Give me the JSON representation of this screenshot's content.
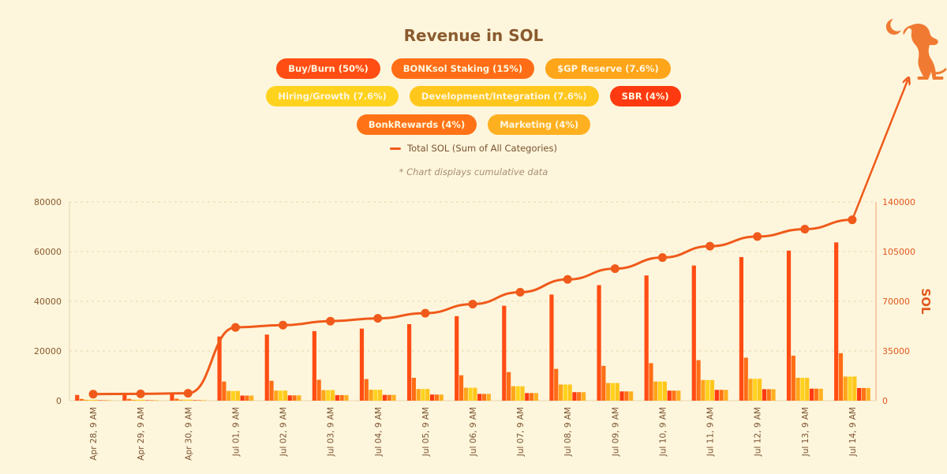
{
  "chart_data": {
    "type": "bar",
    "title": "Revenue in SOL",
    "note": "* Chart displays cumulative data",
    "categories": [
      "Apr 28, 9 AM",
      "Apr 29, 9 AM",
      "Apr 30, 9 AM",
      "Jul 01, 9 AM",
      "Jul 02, 9 AM",
      "Jul 03, 9 AM",
      "Jul 04, 9 AM",
      "Jul 05, 9 AM",
      "Jul 06, 9 AM",
      "Jul 07, 9 AM",
      "Jul 08, 9 AM",
      "Jul 09, 9 AM",
      "Jul 10, 9 AM",
      "Jul 11, 9 AM",
      "Jul 12, 9 AM",
      "Jul 13, 9 AM",
      "Jul 14, 9 AM"
    ],
    "series": [
      {
        "name": "Buy/Burn (50%)",
        "color": "#ff4d14",
        "values": [
          2300,
          2400,
          2600,
          25800,
          26600,
          28000,
          29000,
          30800,
          34000,
          38200,
          42700,
          46500,
          50400,
          54400,
          57800,
          60400,
          63700
        ]
      },
      {
        "name": "BONKsol Staking (15%)",
        "color": "#ff6d16",
        "values": [
          700,
          720,
          780,
          7700,
          8000,
          8400,
          8700,
          9200,
          10200,
          11500,
          12800,
          14000,
          15100,
          16300,
          17300,
          18100,
          19100
        ]
      },
      {
        "name": "$GP Reserve (7.6%)",
        "color": "#ffa51a",
        "values": [
          350,
          365,
          395,
          3900,
          4050,
          4250,
          4400,
          4700,
          5200,
          5800,
          6500,
          7100,
          7700,
          8300,
          8800,
          9200,
          9700
        ]
      },
      {
        "name": "Hiring/Growth (7.6%)",
        "color": "#ffd21e",
        "values": [
          350,
          365,
          395,
          3900,
          4050,
          4250,
          4400,
          4700,
          5200,
          5800,
          6500,
          7100,
          7700,
          8300,
          8800,
          9200,
          9700
        ]
      },
      {
        "name": "Development/Integration (7.6%)",
        "color": "#ffc61c",
        "values": [
          350,
          365,
          395,
          3900,
          4050,
          4250,
          4400,
          4700,
          5200,
          5800,
          6500,
          7100,
          7700,
          8300,
          8800,
          9200,
          9700
        ]
      },
      {
        "name": "SBR (4%)",
        "color": "#ff3a10",
        "values": [
          185,
          190,
          210,
          2050,
          2130,
          2240,
          2320,
          2460,
          2720,
          3060,
          3420,
          3720,
          4030,
          4350,
          4620,
          4830,
          5100
        ]
      },
      {
        "name": "BonkRewards (4%)",
        "color": "#ff7316",
        "values": [
          185,
          190,
          210,
          2050,
          2130,
          2240,
          2320,
          2460,
          2720,
          3060,
          3420,
          3720,
          4030,
          4350,
          4620,
          4830,
          5100
        ]
      },
      {
        "name": "Marketing (4%)",
        "color": "#ffb020",
        "values": [
          185,
          190,
          210,
          2050,
          2130,
          2240,
          2320,
          2460,
          2720,
          3060,
          3420,
          3720,
          4030,
          4350,
          4620,
          4830,
          5100
        ]
      }
    ],
    "line": {
      "name": "Total SOL (Sum of All Categories)",
      "color": "#f05a1a",
      "axis": "right",
      "values": [
        4600,
        4800,
        5200,
        51600,
        53200,
        56000,
        58000,
        61600,
        68000,
        76400,
        85400,
        93000,
        100800,
        108800,
        115600,
        120800,
        127400
      ]
    },
    "y_left": {
      "min": 0,
      "max": 80000,
      "ticks": [
        "0",
        "20000",
        "40000",
        "60000",
        "80000"
      ]
    },
    "y_right": {
      "min": 0,
      "max": 140000,
      "label": "SOL",
      "ticks": [
        "0",
        "35000",
        "70000",
        "105000",
        "140000"
      ]
    },
    "grid": true,
    "legend_position": "top-center"
  }
}
